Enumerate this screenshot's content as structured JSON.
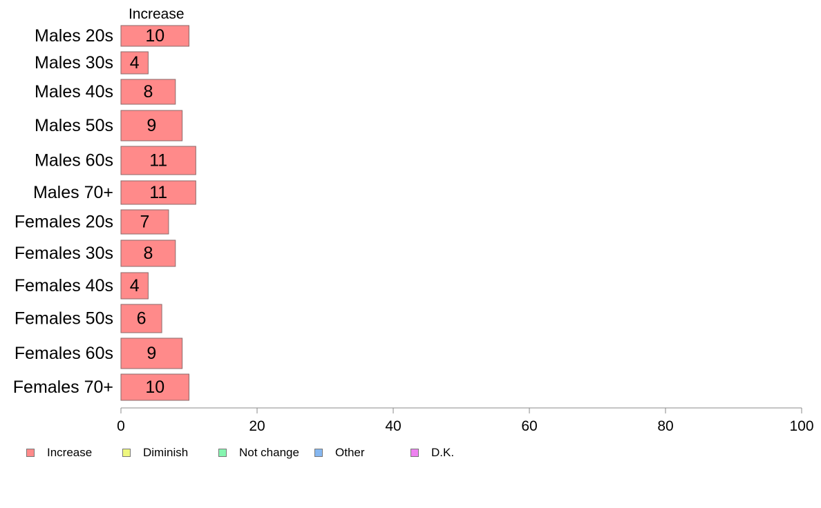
{
  "chart_data": {
    "type": "bar",
    "orientation": "horizontal",
    "stacked": true,
    "categories": [
      "Males 20s",
      "Males 30s",
      "Males 40s",
      "Males 50s",
      "Males 60s",
      "Males 70+",
      "Females 20s",
      "Females 30s",
      "Females 40s",
      "Females 50s",
      "Females 60s",
      "Females 70+"
    ],
    "series": [
      {
        "name": "Increase",
        "color": "#ff8a8a",
        "values": [
          10,
          4,
          8,
          9,
          11,
          11,
          7,
          8,
          4,
          6,
          9,
          10
        ]
      },
      {
        "name": "Diminish",
        "color": "#eef77f",
        "values": null
      },
      {
        "name": "Not change",
        "color": "#86f5b0",
        "values": null
      },
      {
        "name": "Other",
        "color": "#86b7f0",
        "values": null
      },
      {
        "name": "D.K.",
        "color": "#ee82f0",
        "values": null
      }
    ],
    "segment_header": "Increase",
    "xlim": [
      0,
      100
    ],
    "xticks": [
      "0",
      "20",
      "40",
      "60",
      "80",
      "100"
    ],
    "grid": false,
    "legend_position": "bottom-left"
  }
}
